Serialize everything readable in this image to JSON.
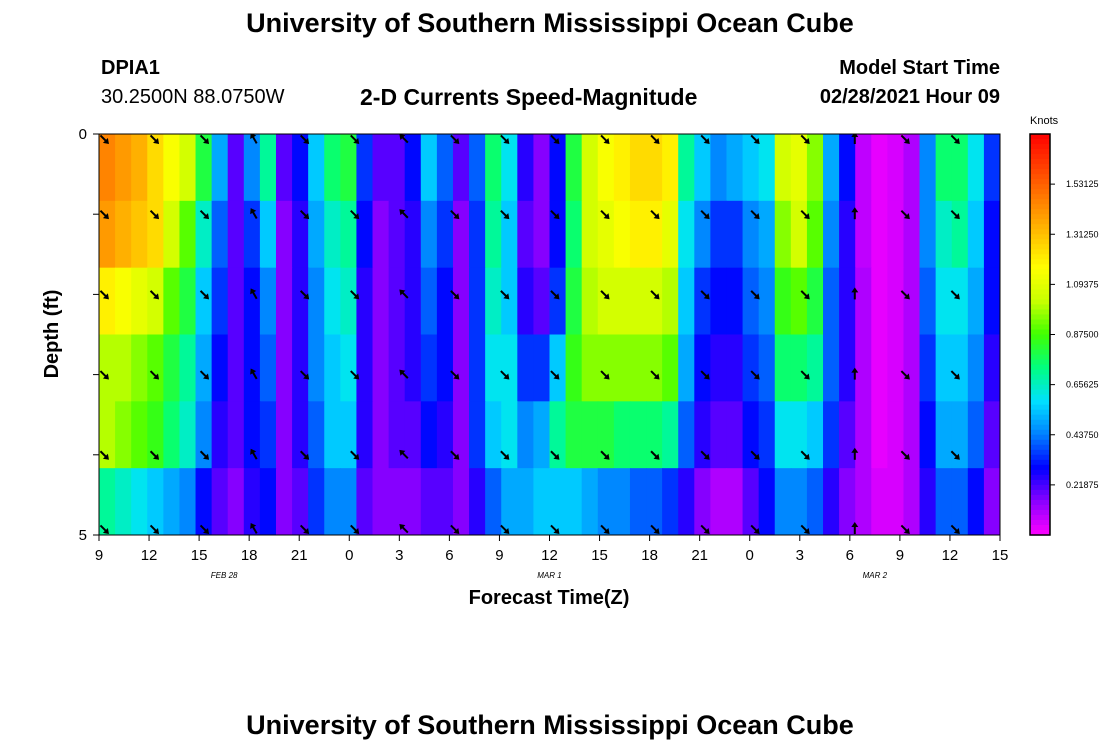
{
  "page": {
    "title_top": "University of Southern Mississippi Ocean Cube",
    "title_bottom": "University of Southern Mississippi Ocean Cube",
    "station_id": "DPIA1",
    "station_coords": "30.2500N 88.0750W",
    "chart_title": "2-D Currents Speed-Magnitude",
    "model_label": "Model Start Time",
    "model_time": "02/28/2021 Hour 09"
  },
  "chart_data": {
    "type": "heatmap",
    "title": "2-D Currents Speed-Magnitude",
    "xlabel": "Forecast Time(Z)",
    "ylabel": "Depth (ft)",
    "x_tick_labels": [
      "9",
      "12",
      "15",
      "18",
      "21",
      "0",
      "3",
      "6",
      "9",
      "12",
      "15",
      "18",
      "21",
      "0",
      "3",
      "6",
      "9",
      "12",
      "15"
    ],
    "date_labels": [
      {
        "label": "FEB 28",
        "tick_index": 2.5
      },
      {
        "label": "MAR 1",
        "tick_index": 9
      },
      {
        "label": "MAR 2",
        "tick_index": 15.5
      }
    ],
    "y_tick_labels": [
      "0",
      "5"
    ],
    "ylim": [
      0,
      5
    ],
    "x_step_hours": 3,
    "x_start": "02/28/2021 09Z",
    "depth_rows": 5,
    "colorbar_unit": "Knots",
    "colorbar_ticks": [
      "1.53125",
      "1.31250",
      "1.09375",
      "0.87500",
      "0.65625",
      "0.43750",
      "0.21875"
    ],
    "colorbar_range": [
      0,
      1.75
    ],
    "colormap": [
      "#ff00ff",
      "#8a00ff",
      "#0000ff",
      "#0080ff",
      "#00e0ff",
      "#00ff80",
      "#40ff00",
      "#c8ff00",
      "#ffff00",
      "#ffc000",
      "#ff8000",
      "#ff4000",
      "#ff0000"
    ],
    "speed_knots_by_depth": [
      [
        1.45,
        1.4,
        1.35,
        1.25,
        1.15,
        1.05,
        0.8,
        0.5,
        0.2,
        0.45,
        0.7,
        0.2,
        0.3,
        0.55,
        0.75,
        0.8,
        0.35,
        0.2,
        0.2,
        0.3,
        0.55,
        0.4,
        0.2,
        0.4,
        0.75,
        0.6,
        0.25,
        0.15,
        0.3,
        0.8,
        1.05,
        1.15,
        1.2,
        1.25,
        1.25,
        1.2,
        0.7,
        0.55,
        0.45,
        0.5,
        0.55,
        0.6,
        1.05,
        1.1,
        0.95,
        0.5,
        0.3,
        0.08,
        0.03,
        0.05,
        0.1,
        0.45,
        0.75,
        0.75,
        0.6,
        0.35
      ],
      [
        1.4,
        1.35,
        1.3,
        1.25,
        1.05,
        0.9,
        0.65,
        0.4,
        0.2,
        0.35,
        0.55,
        0.15,
        0.25,
        0.5,
        0.65,
        0.7,
        0.3,
        0.15,
        0.2,
        0.25,
        0.45,
        0.35,
        0.15,
        0.35,
        0.7,
        0.55,
        0.2,
        0.15,
        0.3,
        0.75,
        1.05,
        1.1,
        1.15,
        1.2,
        1.2,
        1.1,
        0.6,
        0.45,
        0.35,
        0.35,
        0.45,
        0.5,
        0.95,
        1.05,
        0.9,
        0.45,
        0.25,
        0.08,
        0.03,
        0.05,
        0.1,
        0.45,
        0.65,
        0.7,
        0.55,
        0.3
      ],
      [
        1.2,
        1.15,
        1.1,
        1.05,
        0.9,
        0.8,
        0.55,
        0.35,
        0.2,
        0.3,
        0.45,
        0.15,
        0.25,
        0.45,
        0.6,
        0.65,
        0.25,
        0.15,
        0.2,
        0.25,
        0.4,
        0.3,
        0.15,
        0.35,
        0.65,
        0.55,
        0.25,
        0.2,
        0.35,
        0.8,
        1.0,
        1.05,
        1.05,
        1.05,
        1.05,
        1.0,
        0.55,
        0.35,
        0.3,
        0.3,
        0.4,
        0.45,
        0.85,
        0.9,
        0.8,
        0.4,
        0.25,
        0.1,
        0.03,
        0.05,
        0.1,
        0.4,
        0.6,
        0.6,
        0.5,
        0.3
      ],
      [
        1.0,
        1.0,
        0.95,
        0.9,
        0.8,
        0.7,
        0.5,
        0.3,
        0.2,
        0.3,
        0.4,
        0.15,
        0.25,
        0.45,
        0.55,
        0.6,
        0.25,
        0.15,
        0.2,
        0.25,
        0.35,
        0.3,
        0.15,
        0.35,
        0.6,
        0.6,
        0.35,
        0.35,
        0.55,
        0.85,
        0.95,
        0.95,
        0.95,
        0.95,
        0.95,
        0.9,
        0.5,
        0.3,
        0.25,
        0.25,
        0.35,
        0.4,
        0.75,
        0.75,
        0.7,
        0.4,
        0.25,
        0.1,
        0.03,
        0.05,
        0.1,
        0.35,
        0.55,
        0.55,
        0.45,
        0.25
      ],
      [
        1.0,
        0.95,
        0.9,
        0.85,
        0.75,
        0.65,
        0.45,
        0.25,
        0.2,
        0.3,
        0.35,
        0.15,
        0.25,
        0.4,
        0.55,
        0.55,
        0.25,
        0.15,
        0.2,
        0.2,
        0.3,
        0.25,
        0.15,
        0.35,
        0.55,
        0.6,
        0.45,
        0.5,
        0.7,
        0.8,
        0.8,
        0.8,
        0.75,
        0.75,
        0.75,
        0.7,
        0.4,
        0.25,
        0.2,
        0.2,
        0.3,
        0.35,
        0.6,
        0.6,
        0.55,
        0.35,
        0.2,
        0.1,
        0.03,
        0.05,
        0.1,
        0.3,
        0.5,
        0.5,
        0.4,
        0.2
      ],
      [
        0.7,
        0.65,
        0.6,
        0.55,
        0.5,
        0.45,
        0.3,
        0.2,
        0.15,
        0.25,
        0.3,
        0.15,
        0.2,
        0.35,
        0.45,
        0.45,
        0.2,
        0.15,
        0.15,
        0.15,
        0.2,
        0.2,
        0.15,
        0.25,
        0.4,
        0.5,
        0.5,
        0.55,
        0.55,
        0.55,
        0.5,
        0.45,
        0.45,
        0.4,
        0.4,
        0.35,
        0.25,
        0.15,
        0.1,
        0.1,
        0.2,
        0.3,
        0.45,
        0.45,
        0.4,
        0.25,
        0.15,
        0.1,
        0.05,
        0.05,
        0.1,
        0.25,
        0.4,
        0.4,
        0.3,
        0.15
      ]
    ],
    "direction_deg_at_ticks": [
      135,
      135,
      135,
      330,
      135,
      135,
      315,
      135,
      135,
      135,
      135,
      135,
      135,
      135,
      135,
      0,
      135,
      135,
      null
    ],
    "arrow_rows": [
      0,
      1,
      2,
      3,
      4,
      5
    ]
  }
}
